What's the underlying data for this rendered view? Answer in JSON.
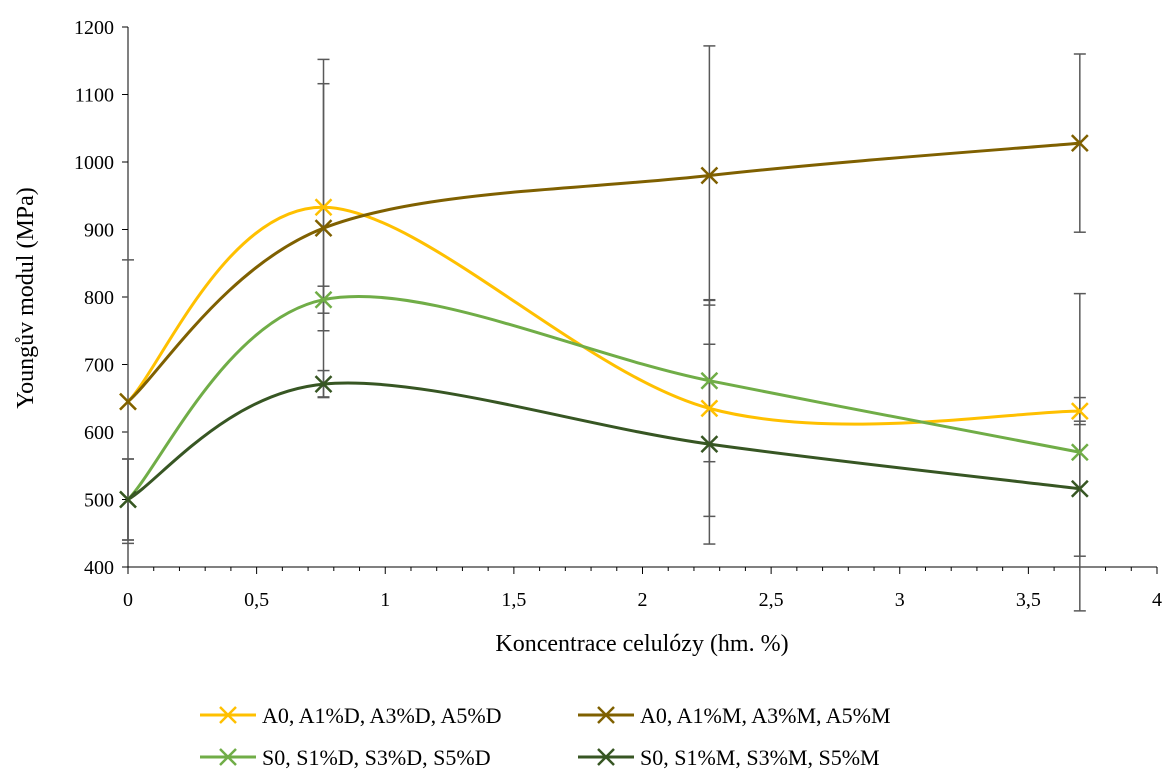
{
  "chart_data": {
    "type": "line",
    "xlabel": "Koncentrace celulózy (hm. %)",
    "ylabel": "Youngův modul (MPa)",
    "xlim": [
      0,
      4
    ],
    "ylim": [
      400,
      1200
    ],
    "x_ticks": [
      "0",
      "0,5",
      "1",
      "1,5",
      "2",
      "2,5",
      "3",
      "3,5",
      "4"
    ],
    "y_ticks": [
      "400",
      "500",
      "600",
      "700",
      "800",
      "900",
      "1000",
      "1100",
      "1200"
    ],
    "grid": false,
    "legend_position": "bottom",
    "series": [
      {
        "name": "A0, A1%D, A3%D, A5%D",
        "color": "#FFC000",
        "x": [
          0,
          0.76,
          2.26,
          3.7
        ],
        "y": [
          645,
          933,
          635,
          631
        ],
        "error": [
          null,
          183,
          160,
          20
        ]
      },
      {
        "name": "A0, A1%M, A3%M, A5%M",
        "color": "#7F6000",
        "x": [
          0,
          0.76,
          2.26,
          3.7
        ],
        "y": [
          645,
          902,
          980,
          1028
        ],
        "error": [
          210,
          250,
          192,
          132
        ]
      },
      {
        "name": "S0, S1%D, S3%D, S5%D",
        "color": "#70AD47",
        "x": [
          0,
          0.76,
          2.26,
          3.7
        ],
        "y": [
          500,
          796,
          676,
          570
        ],
        "error": [
          60,
          20,
          120,
          235
        ]
      },
      {
        "name": "S0, S1%M, S3%M, S5%M",
        "color": "#375623",
        "x": [
          0,
          0.76,
          2.26,
          3.7
        ],
        "y": [
          500,
          671,
          582,
          516
        ],
        "error": [
          60,
          20,
          148,
          100
        ]
      }
    ]
  }
}
